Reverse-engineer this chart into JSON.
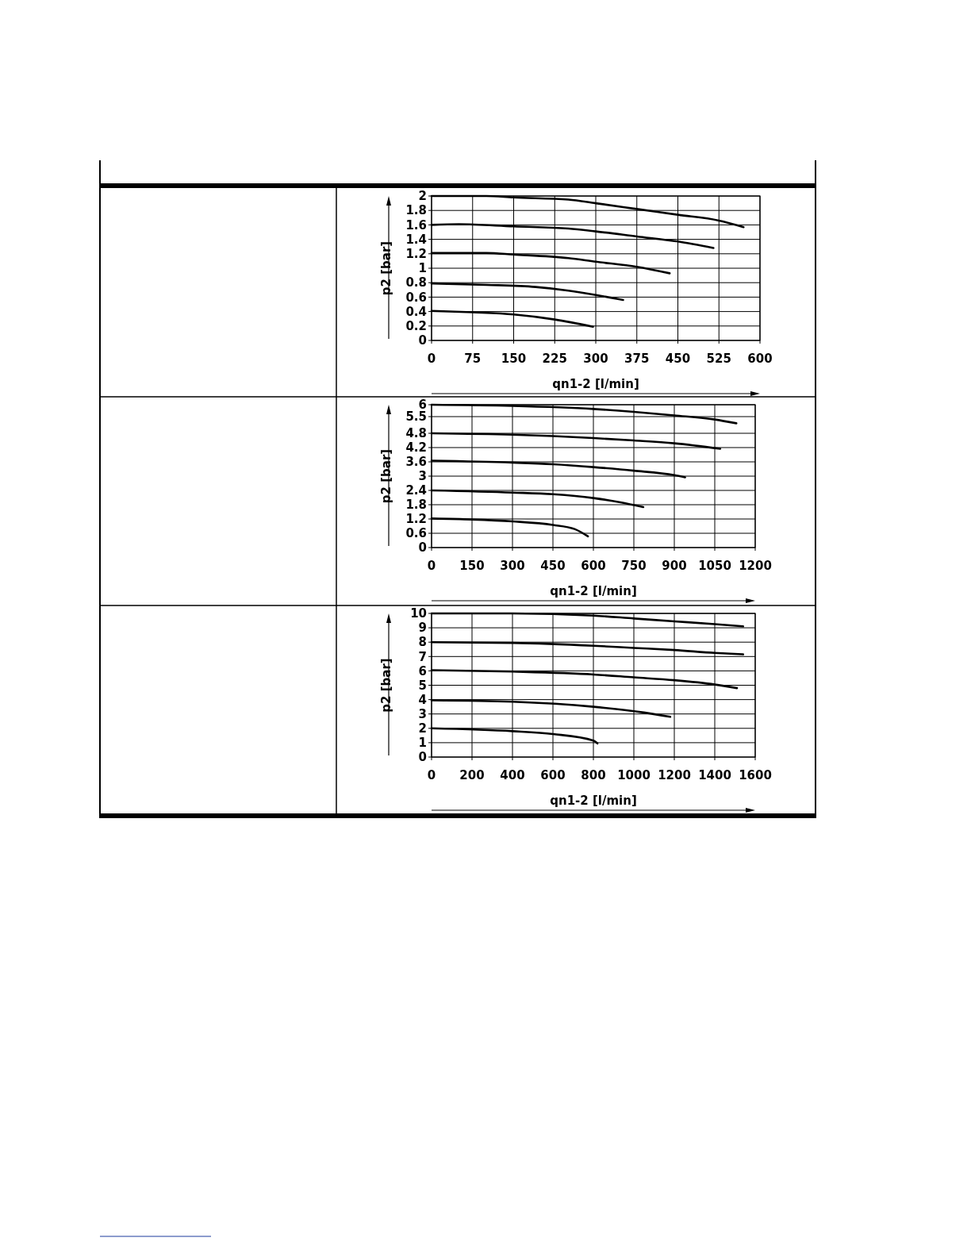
{
  "chart_data": [
    {
      "type": "line",
      "xlabel": "qn1-2 [l/min]",
      "ylabel": "p2 [bar]",
      "xlim": [
        0,
        600
      ],
      "ylim": [
        0,
        2
      ],
      "xticks": [
        0,
        75,
        150,
        225,
        300,
        375,
        450,
        525,
        600
      ],
      "yticks": [
        0,
        0.2,
        0.4,
        0.6,
        0.8,
        1,
        1.2,
        1.4,
        1.6,
        1.8,
        2
      ],
      "grid": true,
      "line_style": "solid",
      "series": [
        {
          "color": "#000000",
          "x": [
            0,
            100,
            150,
            250,
            300,
            375,
            450,
            525,
            570
          ],
          "values": [
            2,
            2,
            1.98,
            1.95,
            1.9,
            1.82,
            1.74,
            1.66,
            1.57
          ]
        },
        {
          "color": "#000000",
          "x": [
            0,
            50,
            150,
            250,
            300,
            375,
            450,
            515
          ],
          "values": [
            1.6,
            1.61,
            1.58,
            1.55,
            1.51,
            1.44,
            1.37,
            1.28
          ]
        },
        {
          "color": "#000000",
          "x": [
            0,
            100,
            150,
            250,
            300,
            375,
            435
          ],
          "values": [
            1.21,
            1.21,
            1.19,
            1.14,
            1.09,
            1.02,
            0.93
          ]
        },
        {
          "color": "#000000",
          "x": [
            0,
            100,
            190,
            250,
            300,
            350
          ],
          "values": [
            0.79,
            0.77,
            0.74,
            0.69,
            0.63,
            0.56
          ]
        },
        {
          "color": "#000000",
          "x": [
            0,
            75,
            150,
            225,
            295
          ],
          "values": [
            0.41,
            0.39,
            0.36,
            0.29,
            0.19
          ]
        }
      ]
    },
    {
      "type": "line",
      "xlabel": "qn1-2 [l/min]",
      "ylabel": "p2 [bar]",
      "xlim": [
        0,
        1200
      ],
      "ylim": [
        0,
        6
      ],
      "xticks": [
        0,
        150,
        300,
        450,
        600,
        750,
        900,
        1050,
        1200
      ],
      "yticks": [
        0,
        0.6,
        1.2,
        1.8,
        2.4,
        3,
        3.6,
        4.2,
        4.8,
        5.5,
        6
      ],
      "grid": true,
      "line_style": "solid",
      "series": [
        {
          "color": "#000000",
          "x": [
            0,
            300,
            600,
            750,
            900,
            1050,
            1130
          ],
          "values": [
            6,
            5.95,
            5.82,
            5.7,
            5.55,
            5.38,
            5.22
          ]
        },
        {
          "color": "#000000",
          "x": [
            0,
            300,
            600,
            750,
            900,
            1070
          ],
          "values": [
            4.8,
            4.74,
            4.6,
            4.5,
            4.38,
            4.15
          ]
        },
        {
          "color": "#000000",
          "x": [
            0,
            300,
            450,
            600,
            750,
            900,
            940
          ],
          "values": [
            3.65,
            3.57,
            3.5,
            3.38,
            3.23,
            3.04,
            2.95
          ]
        },
        {
          "color": "#000000",
          "x": [
            0,
            300,
            450,
            600,
            700,
            785
          ],
          "values": [
            2.4,
            2.31,
            2.24,
            2.08,
            1.9,
            1.7
          ]
        },
        {
          "color": "#000000",
          "x": [
            0,
            150,
            300,
            450,
            530,
            580
          ],
          "values": [
            1.22,
            1.18,
            1.1,
            0.95,
            0.78,
            0.47
          ]
        }
      ]
    },
    {
      "type": "line",
      "xlabel": "qn1-2 [l/min]",
      "ylabel": "p2 [bar]",
      "xlim": [
        0,
        1600
      ],
      "ylim": [
        0,
        10
      ],
      "xticks": [
        0,
        200,
        400,
        600,
        800,
        1000,
        1200,
        1400,
        1600
      ],
      "yticks": [
        0,
        1,
        2,
        3,
        4,
        5,
        6,
        7,
        8,
        9,
        10
      ],
      "grid": true,
      "line_style": "solid",
      "series": [
        {
          "color": "#000000",
          "x": [
            0,
            400,
            800,
            1000,
            1200,
            1400,
            1540
          ],
          "values": [
            10,
            10,
            9.85,
            9.65,
            9.45,
            9.25,
            9.1
          ]
        },
        {
          "color": "#000000",
          "x": [
            0,
            400,
            800,
            1000,
            1200,
            1400,
            1540
          ],
          "values": [
            8,
            7.95,
            7.75,
            7.6,
            7.45,
            7.25,
            7.15
          ]
        },
        {
          "color": "#000000",
          "x": [
            0,
            400,
            800,
            1000,
            1200,
            1400,
            1510
          ],
          "values": [
            6.05,
            5.95,
            5.75,
            5.55,
            5.35,
            5.05,
            4.8
          ]
        },
        {
          "color": "#000000",
          "x": [
            0,
            400,
            800,
            1050,
            1180
          ],
          "values": [
            3.95,
            3.85,
            3.5,
            3.1,
            2.8
          ]
        },
        {
          "color": "#000000",
          "x": [
            0,
            400,
            600,
            800,
            820
          ],
          "values": [
            2,
            1.8,
            1.6,
            1.15,
            0.95
          ]
        }
      ]
    }
  ]
}
